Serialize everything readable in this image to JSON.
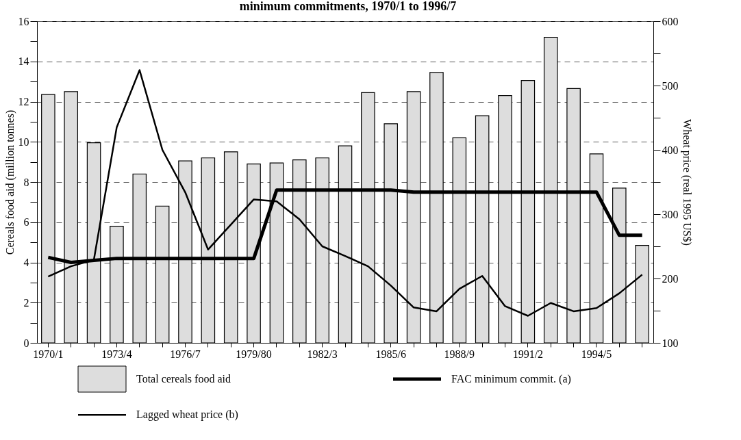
{
  "chart_data": {
    "type": "bar",
    "title": "minimum commitments, 1970/1 to 1996/7",
    "ylabel": "Cereals food aid (million tonnes)",
    "y2label": "Wheat price (real 1995 US$)",
    "categories": [
      "1970/1",
      null,
      null,
      "1973/4",
      null,
      null,
      "1976/7",
      null,
      null,
      "1979/80",
      null,
      null,
      "1982/3",
      null,
      null,
      "1985/6",
      null,
      null,
      "1988/9",
      null,
      null,
      "1991/2",
      null,
      null,
      "1994/5",
      null,
      null
    ],
    "series": [
      {
        "name": "Total cereals food aid",
        "color": "#dddddd",
        "values": [
          12.35,
          12.5,
          9.95,
          5.8,
          8.4,
          6.8,
          9.05,
          9.2,
          9.5,
          8.9,
          8.95,
          9.1,
          9.2,
          9.8,
          12.45,
          10.9,
          12.5,
          13.45,
          10.2,
          11.3,
          12.3,
          13.05,
          15.2,
          12.65,
          9.4,
          7.7,
          4.85
        ]
      },
      {
        "name": "FAC minimum commit. (a)",
        "type": "line",
        "color": "#000000",
        "values": [
          4.25,
          4.0,
          4.1,
          4.2,
          4.2,
          4.2,
          4.2,
          4.2,
          4.2,
          4.2,
          7.6,
          7.6,
          7.6,
          7.6,
          7.6,
          7.6,
          7.5,
          7.5,
          7.5,
          7.5,
          7.5,
          7.5,
          7.5,
          7.5,
          7.5,
          5.35,
          5.35
        ]
      },
      {
        "name": "Lagged wheat price (b)",
        "type": "line",
        "axis": "y2",
        "color": "#000000",
        "values": [
          203,
          219,
          229,
          435,
          524,
          400,
          334,
          245,
          284,
          323,
          320,
          292,
          250,
          235,
          219,
          189,
          155,
          149,
          184,
          204,
          157,
          142,
          162,
          149,
          154,
          177,
          206
        ]
      }
    ],
    "ylim": [
      0,
      16
    ],
    "yticks": [
      0,
      {
        "value": 1,
        "label": null
      },
      2,
      {
        "value": 3,
        "label": null
      },
      4,
      {
        "value": 5,
        "label": null
      },
      6,
      {
        "value": 7,
        "label": null
      },
      8,
      {
        "value": 9,
        "label": null
      },
      10,
      {
        "value": 11,
        "label": null
      },
      12,
      {
        "value": 13,
        "label": null
      },
      14,
      {
        "value": 15,
        "label": null
      },
      16
    ],
    "y2lim": [
      100,
      600
    ],
    "y2ticks": [
      100,
      {
        "value": 150,
        "label": null
      },
      200,
      {
        "value": 250,
        "label": null
      },
      300,
      {
        "value": 350,
        "label": null
      },
      400,
      {
        "value": 450,
        "label": null
      },
      500,
      {
        "value": 550,
        "label": null
      },
      600
    ],
    "grid": "y",
    "line_style": "solid",
    "legend": "bottom"
  }
}
